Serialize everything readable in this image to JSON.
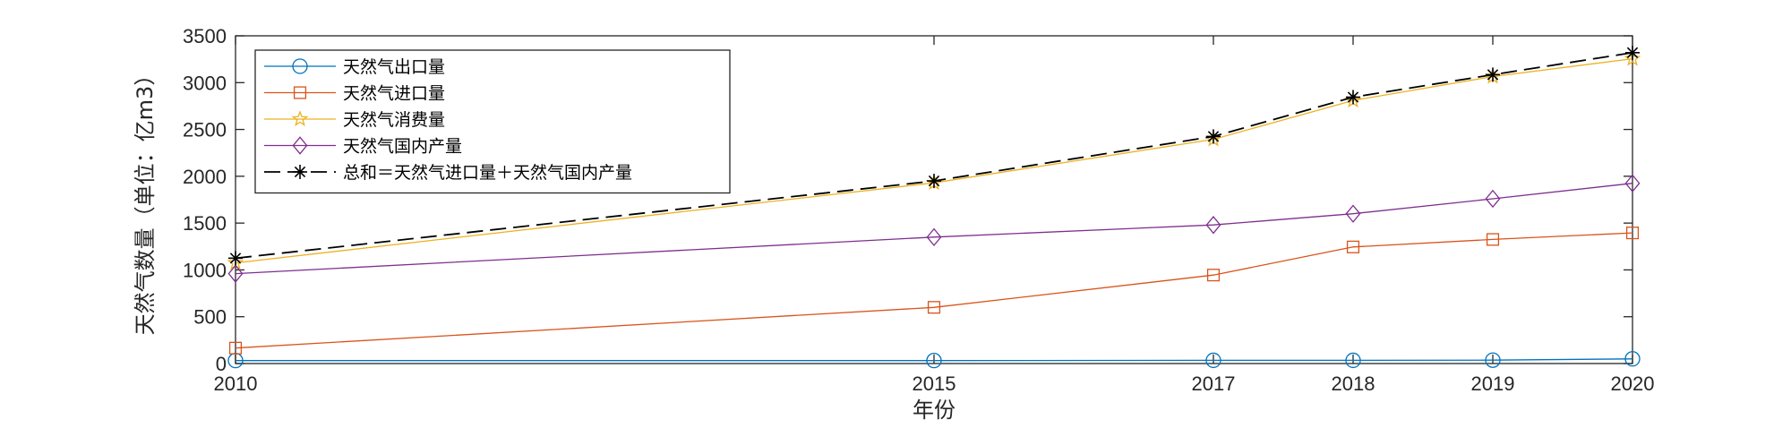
{
  "chart_data": {
    "type": "line",
    "title": "",
    "xlabel": "年份",
    "ylabel": "天然气数量（单位：亿m3）",
    "x": [
      2010,
      2015,
      2017,
      2018,
      2019,
      2020
    ],
    "xticks": [
      "2010",
      "2015",
      "2017",
      "2018",
      "2019",
      "2020"
    ],
    "xlim": [
      2010,
      2020
    ],
    "ylim": [
      0,
      3500
    ],
    "yticks": [
      "0",
      "500",
      "1000",
      "1500",
      "2000",
      "2500",
      "3000",
      "3500"
    ],
    "grid": false,
    "legend_position": "top-left",
    "series": [
      {
        "name": "天然气出口量",
        "values": [
          32,
          32,
          34,
          34,
          36,
          50
        ],
        "color": "#0072BD",
        "marker": "circle",
        "dash": "solid"
      },
      {
        "name": "天然气进口量",
        "values": [
          165,
          600,
          945,
          1245,
          1325,
          1395
        ],
        "color": "#D95319",
        "marker": "square",
        "dash": "solid"
      },
      {
        "name": "天然气消费量",
        "values": [
          1075,
          1930,
          2395,
          2810,
          3065,
          3255
        ],
        "color": "#EDB120",
        "marker": "star",
        "dash": "solid"
      },
      {
        "name": "天然气国内产量",
        "values": [
          960,
          1350,
          1480,
          1600,
          1760,
          1925
        ],
        "color": "#7E2F8E",
        "marker": "diamond",
        "dash": "solid"
      },
      {
        "name": "总和＝天然气进口量＋天然气国内产量",
        "values": [
          1125,
          1950,
          2425,
          2845,
          3085,
          3320
        ],
        "color": "#000000",
        "marker": "asterisk",
        "dash": "dashed"
      }
    ]
  }
}
